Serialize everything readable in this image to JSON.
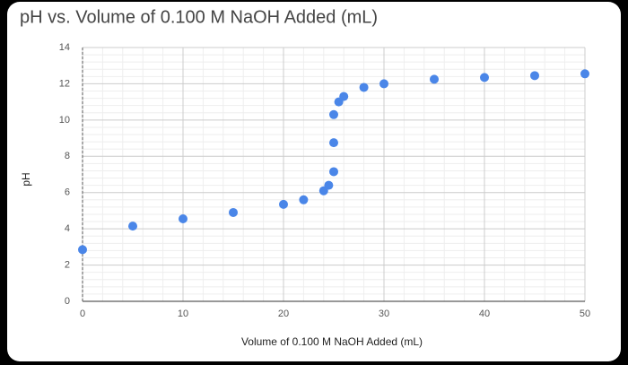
{
  "chart_data": {
    "type": "scatter",
    "title": "pH vs. Volume of 0.100 M NaOH Added (mL)",
    "x_label": "Volume of 0.100 M NaOH Added (mL)",
    "y_label": "pH",
    "x": [
      0,
      5,
      10,
      15,
      20,
      22,
      24,
      24.5,
      25,
      25,
      25,
      25.5,
      26,
      28,
      30,
      35,
      40,
      45,
      50
    ],
    "values": [
      2.85,
      4.15,
      4.55,
      4.9,
      5.35,
      5.6,
      6.1,
      6.4,
      7.15,
      8.75,
      10.3,
      11.0,
      11.3,
      11.8,
      12.0,
      12.25,
      12.35,
      12.45,
      12.55
    ],
    "color": "#4a86e8",
    "xlim": [
      0,
      50
    ],
    "xticks": [
      0,
      10,
      20,
      30,
      40,
      50
    ],
    "ylim": [
      0,
      14
    ],
    "yticks": [
      0,
      2,
      4,
      6,
      8,
      10,
      12,
      14
    ],
    "grid": true,
    "minor_grid": true
  }
}
